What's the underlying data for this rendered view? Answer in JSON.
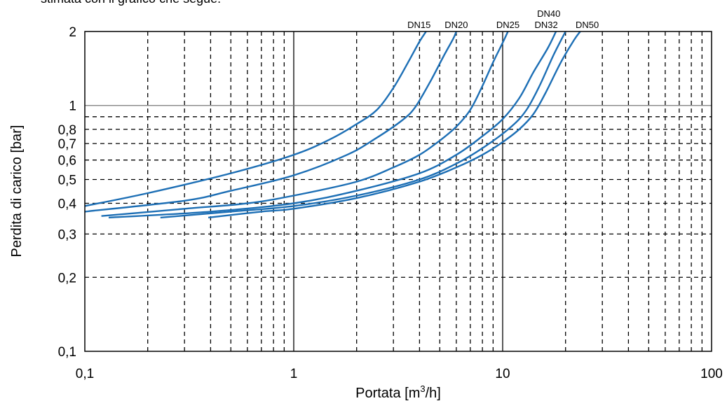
{
  "document": {
    "top_text": "stimata con il grafico che segue:"
  },
  "chart_data": {
    "type": "line",
    "title": "",
    "xlabel_main": "Portata [m",
    "xlabel_sup": "3",
    "xlabel_tail": "/h]",
    "ylabel": "Perdita di carico [bar]",
    "x_scale": "log",
    "y_scale": "log",
    "xlim": [
      0.1,
      100
    ],
    "ylim": [
      0.1,
      2
    ],
    "grid": true,
    "x_ticks": [
      {
        "value": 0.1,
        "label": "0,1"
      },
      {
        "value": 1,
        "label": "1"
      },
      {
        "value": 10,
        "label": "10"
      },
      {
        "value": 100,
        "label": "100"
      }
    ],
    "y_ticks": [
      {
        "value": 0.1,
        "label": "0,1"
      },
      {
        "value": 0.2,
        "label": "0,2"
      },
      {
        "value": 0.3,
        "label": "0,3"
      },
      {
        "value": 0.4,
        "label": "0,4"
      },
      {
        "value": 0.5,
        "label": "0,5"
      },
      {
        "value": 0.6,
        "label": "0,6"
      },
      {
        "value": 0.7,
        "label": "0,7"
      },
      {
        "value": 0.8,
        "label": "0,8"
      },
      {
        "value": 1,
        "label": "1"
      },
      {
        "value": 2,
        "label": "2"
      }
    ],
    "x_minor_grid": [
      0.2,
      0.3,
      0.4,
      0.5,
      0.6,
      0.7,
      0.8,
      0.9,
      2,
      3,
      4,
      5,
      6,
      7,
      8,
      9,
      20,
      30,
      40,
      50,
      60,
      70,
      80,
      90
    ],
    "y_minor_grid": [
      0.2,
      0.3,
      0.4,
      0.5,
      0.6,
      0.7,
      0.8,
      0.9
    ],
    "reference_line_y": 1,
    "line_color": "#1d6fb5",
    "series": [
      {
        "name": "DN15",
        "points": [
          [
            0.1,
            0.39
          ],
          [
            0.2,
            0.44
          ],
          [
            0.5,
            0.53
          ],
          [
            1,
            0.63
          ],
          [
            1.5,
            0.73
          ],
          [
            2,
            0.84
          ],
          [
            2.5,
            0.96
          ],
          [
            3,
            1.18
          ],
          [
            3.5,
            1.48
          ],
          [
            4,
            1.82
          ],
          [
            4.3,
            2.0
          ]
        ]
      },
      {
        "name": "DN20",
        "points": [
          [
            0.1,
            0.37
          ],
          [
            0.3,
            0.41
          ],
          [
            0.5,
            0.45
          ],
          [
            1,
            0.52
          ],
          [
            1.8,
            0.63
          ],
          [
            2.5,
            0.74
          ],
          [
            3.3,
            0.87
          ],
          [
            3.8,
            0.98
          ],
          [
            4.5,
            1.25
          ],
          [
            5.2,
            1.58
          ],
          [
            5.8,
            1.87
          ],
          [
            6.0,
            2.0
          ]
        ]
      },
      {
        "name": "DN25",
        "points": [
          [
            0.12,
            0.355
          ],
          [
            0.3,
            0.38
          ],
          [
            0.6,
            0.4
          ],
          [
            1,
            0.43
          ],
          [
            2,
            0.49
          ],
          [
            3,
            0.56
          ],
          [
            4,
            0.63
          ],
          [
            5,
            0.72
          ],
          [
            6,
            0.82
          ],
          [
            7,
            0.96
          ],
          [
            8,
            1.2
          ],
          [
            9,
            1.5
          ],
          [
            10,
            1.8
          ],
          [
            10.6,
            2.0
          ]
        ]
      },
      {
        "name": "DN32",
        "points": [
          [
            0.13,
            0.35
          ],
          [
            0.4,
            0.37
          ],
          [
            1,
            0.4
          ],
          [
            2,
            0.45
          ],
          [
            4,
            0.53
          ],
          [
            6,
            0.63
          ],
          [
            8,
            0.75
          ],
          [
            10,
            0.88
          ],
          [
            12,
            1.07
          ],
          [
            14,
            1.36
          ],
          [
            16.5,
            1.72
          ],
          [
            18,
            2.0
          ]
        ]
      },
      {
        "name": "DN40",
        "points": [
          [
            0.23,
            0.35
          ],
          [
            0.5,
            0.37
          ],
          [
            1,
            0.39
          ],
          [
            2,
            0.43
          ],
          [
            4,
            0.5
          ],
          [
            6,
            0.58
          ],
          [
            8,
            0.67
          ],
          [
            11,
            0.82
          ],
          [
            13,
            0.96
          ],
          [
            15,
            1.2
          ],
          [
            17.5,
            1.6
          ],
          [
            20,
            2.0
          ]
        ]
      },
      {
        "name": "DN50",
        "points": [
          [
            0.39,
            0.35
          ],
          [
            0.7,
            0.37
          ],
          [
            1,
            0.38
          ],
          [
            2,
            0.42
          ],
          [
            4,
            0.49
          ],
          [
            6,
            0.56
          ],
          [
            8,
            0.63
          ],
          [
            10,
            0.71
          ],
          [
            12,
            0.8
          ],
          [
            14,
            0.92
          ],
          [
            16,
            1.12
          ],
          [
            19,
            1.5
          ],
          [
            22,
            1.85
          ],
          [
            23.5,
            2.0
          ]
        ]
      }
    ]
  }
}
